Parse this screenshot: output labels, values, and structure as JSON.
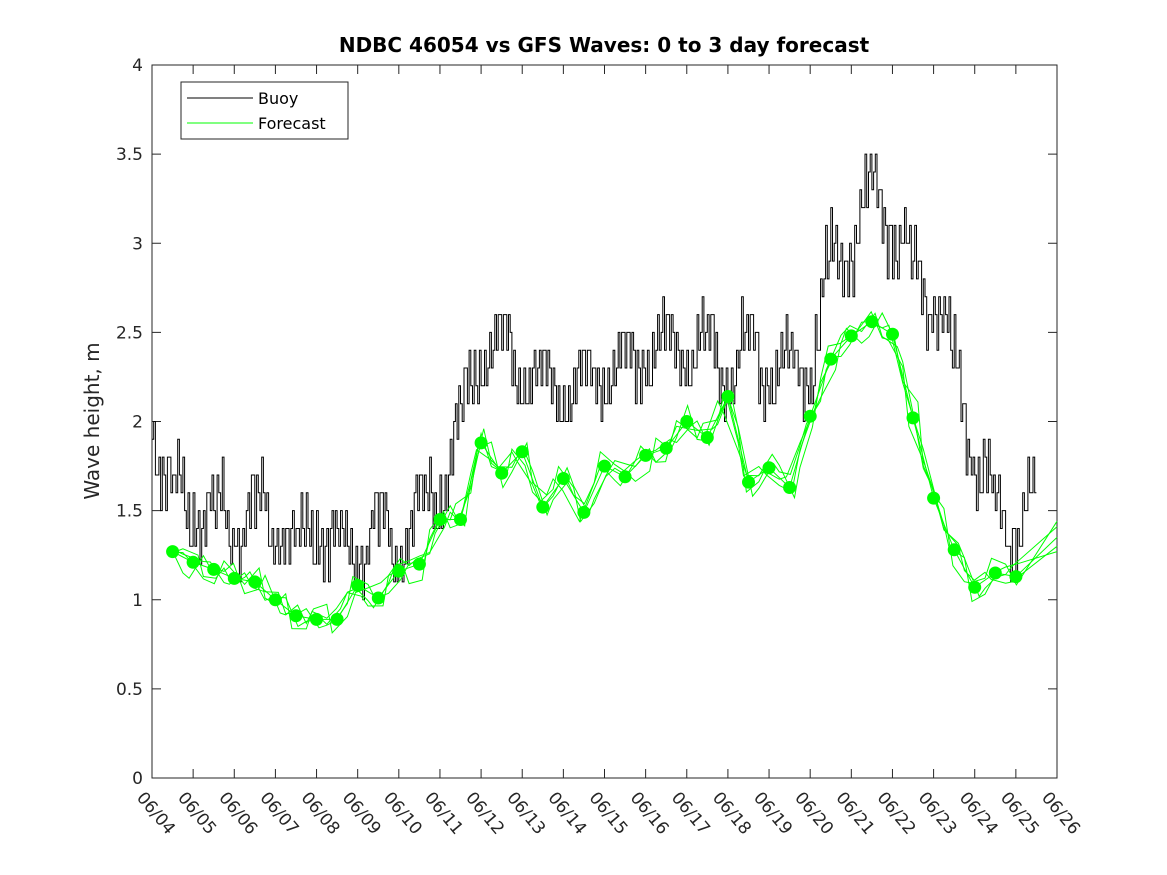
{
  "chart_data": {
    "type": "line",
    "title": "NDBC 46054 vs GFS Waves: 0 to 3 day forecast",
    "xlabel": "",
    "ylabel": "Wave height, m",
    "xlim": [
      "06/04",
      "06/26"
    ],
    "ylim": [
      0,
      4
    ],
    "x_ticks": [
      "06/04",
      "06/05",
      "06/06",
      "06/07",
      "06/08",
      "06/09",
      "06/10",
      "06/11",
      "06/12",
      "06/13",
      "06/14",
      "06/15",
      "06/16",
      "06/17",
      "06/18",
      "06/19",
      "06/20",
      "06/21",
      "06/22",
      "06/23",
      "06/24",
      "06/25",
      "06/26"
    ],
    "y_ticks": [
      "0",
      "0.5",
      "1",
      "1.5",
      "2",
      "2.5",
      "3",
      "3.5",
      "4"
    ],
    "grid": false,
    "legend": {
      "position": "top-left",
      "entries": [
        "Buoy",
        "Forecast"
      ]
    },
    "colors": {
      "buoy": "#000000",
      "forecast": "#00ff00"
    },
    "series": [
      {
        "name": "Buoy",
        "x": [
          "06/04 00:00",
          "06/04 12:00",
          "06/05 00:00",
          "06/05 12:00",
          "06/06 00:00",
          "06/06 12:00",
          "06/07 00:00",
          "06/07 12:00",
          "06/08 00:00",
          "06/08 12:00",
          "06/09 00:00",
          "06/09 12:00",
          "06/10 00:00",
          "06/10 12:00",
          "06/11 00:00",
          "06/11 12:00",
          "06/12 00:00",
          "06/12 12:00",
          "06/13 00:00",
          "06/13 12:00",
          "06/14 00:00",
          "06/14 12:00",
          "06/15 00:00",
          "06/15 12:00",
          "06/16 00:00",
          "06/16 12:00",
          "06/17 00:00",
          "06/17 12:00",
          "06/18 00:00",
          "06/18 12:00",
          "06/19 00:00",
          "06/19 12:00",
          "06/20 00:00",
          "06/20 12:00",
          "06/21 00:00",
          "06/21 12:00",
          "06/22 00:00",
          "06/22 12:00",
          "06/23 00:00",
          "06/23 12:00",
          "06/24 00:00",
          "06/24 12:00",
          "06/25 00:00",
          "06/25 12:00"
        ],
        "values": [
          1.9,
          1.6,
          1.5,
          1.5,
          1.4,
          1.5,
          1.4,
          1.3,
          1.4,
          1.3,
          1.3,
          1.4,
          1.3,
          1.5,
          1.6,
          2.0,
          2.4,
          2.4,
          2.3,
          2.2,
          2.2,
          2.2,
          2.3,
          2.3,
          2.4,
          2.4,
          2.4,
          2.4,
          2.3,
          2.4,
          2.3,
          2.3,
          2.3,
          2.9,
          3.0,
          3.3,
          3.1,
          2.8,
          2.7,
          2.3,
          1.8,
          1.5,
          1.4,
          1.6
        ]
      },
      {
        "name": "Forecast",
        "x": [
          "06/04 12:00",
          "06/05 00:00",
          "06/05 12:00",
          "06/06 00:00",
          "06/06 12:00",
          "06/07 00:00",
          "06/07 12:00",
          "06/08 00:00",
          "06/08 12:00",
          "06/09 00:00",
          "06/09 12:00",
          "06/10 00:00",
          "06/10 12:00",
          "06/11 00:00",
          "06/11 12:00",
          "06/12 00:00",
          "06/12 12:00",
          "06/13 00:00",
          "06/13 12:00",
          "06/14 00:00",
          "06/14 12:00",
          "06/15 00:00",
          "06/15 12:00",
          "06/16 00:00",
          "06/16 12:00",
          "06/17 00:00",
          "06/17 12:00",
          "06/18 00:00",
          "06/18 12:00",
          "06/19 00:00",
          "06/19 12:00",
          "06/20 00:00",
          "06/20 12:00",
          "06/21 00:00",
          "06/21 12:00",
          "06/22 00:00",
          "06/22 12:00",
          "06/23 00:00",
          "06/23 12:00",
          "06/24 00:00",
          "06/24 12:00",
          "06/25 00:00"
        ],
        "values": [
          1.27,
          1.21,
          1.17,
          1.12,
          1.1,
          1.0,
          0.91,
          0.89,
          0.89,
          1.08,
          1.01,
          1.16,
          1.2,
          1.45,
          1.45,
          1.88,
          1.71,
          1.83,
          1.52,
          1.68,
          1.49,
          1.75,
          1.69,
          1.81,
          1.85,
          2.0,
          1.91,
          2.14,
          1.66,
          1.74,
          1.63,
          2.03,
          2.35,
          2.48,
          2.56,
          2.49,
          2.02,
          1.57,
          1.28,
          1.07,
          1.15,
          1.13
        ]
      }
    ]
  }
}
